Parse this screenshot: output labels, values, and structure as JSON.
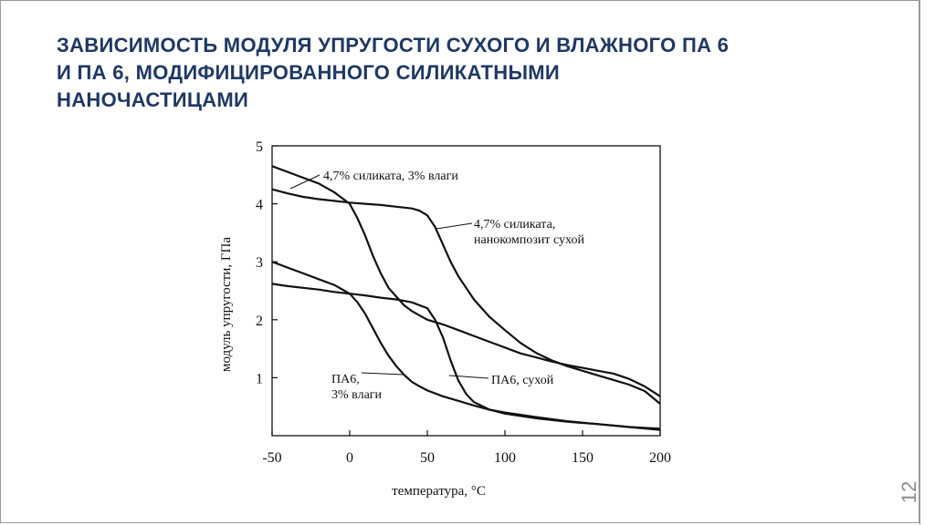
{
  "slide": {
    "title_lines": [
      "ЗАВИСИМОСТЬ МОДУЛЯ УПРУГОСТИ СУХОГО И ВЛАЖНОГО ПА 6",
      "И ПА 6, МОДИФИЦИРОВАННОГО СИЛИКАТНЫМИ",
      "НАНОЧАСТИЦАМИ"
    ],
    "slide_number": "12"
  },
  "chart_data": {
    "type": "line",
    "xlabel": "температура, °С",
    "ylabel": "модуль упругости, ГПа",
    "xlim": [
      -50,
      200
    ],
    "ylim": [
      0,
      5
    ],
    "xticks": [
      "-50",
      "0",
      "50",
      "100",
      "150",
      "200"
    ],
    "yticks": [
      "1",
      "2",
      "3",
      "4",
      "5"
    ],
    "grid": false,
    "legend": "annotations",
    "series": [
      {
        "name": "4,7% силиката, 3% влаги",
        "label_lines": [
          "4,7% силиката, 3% влаги"
        ],
        "x": [
          -50,
          -40,
          -30,
          -20,
          -10,
          0,
          5,
          10,
          15,
          20,
          25,
          30,
          35,
          40,
          50,
          60,
          70,
          80,
          90,
          100,
          110,
          120,
          130,
          140,
          150,
          160,
          170,
          180,
          190,
          200
        ],
        "y": [
          4.65,
          4.55,
          4.45,
          4.35,
          4.2,
          4.0,
          3.75,
          3.45,
          3.1,
          2.8,
          2.55,
          2.4,
          2.25,
          2.15,
          2.0,
          1.92,
          1.82,
          1.72,
          1.62,
          1.52,
          1.42,
          1.35,
          1.28,
          1.22,
          1.17,
          1.12,
          1.07,
          0.98,
          0.85,
          0.68
        ]
      },
      {
        "name": "4,7% силиката, нанокомпозит сухой",
        "label_lines": [
          "4,7% силиката,",
          "нанокомпозит сухой"
        ],
        "x": [
          -50,
          -40,
          -30,
          -20,
          -10,
          0,
          10,
          20,
          30,
          40,
          45,
          50,
          55,
          60,
          65,
          70,
          75,
          80,
          90,
          100,
          110,
          120,
          130,
          140,
          150,
          160,
          170,
          180,
          190,
          200
        ],
        "y": [
          4.25,
          4.18,
          4.12,
          4.08,
          4.05,
          4.02,
          4.0,
          3.98,
          3.95,
          3.92,
          3.88,
          3.8,
          3.6,
          3.3,
          3.0,
          2.75,
          2.55,
          2.35,
          2.05,
          1.82,
          1.6,
          1.43,
          1.3,
          1.2,
          1.12,
          1.04,
          0.96,
          0.88,
          0.77,
          0.55
        ]
      },
      {
        "name": "ПА6, 3% влаги",
        "label_lines": [
          "ПА6,",
          "3% влаги"
        ],
        "x": [
          -50,
          -40,
          -30,
          -20,
          -10,
          0,
          5,
          10,
          15,
          20,
          25,
          30,
          35,
          40,
          45,
          50,
          60,
          70,
          80,
          90,
          100,
          120,
          140,
          160,
          180,
          200
        ],
        "y": [
          3.0,
          2.9,
          2.8,
          2.7,
          2.6,
          2.45,
          2.3,
          2.1,
          1.85,
          1.6,
          1.38,
          1.2,
          1.05,
          0.93,
          0.85,
          0.78,
          0.68,
          0.6,
          0.52,
          0.45,
          0.4,
          0.32,
          0.25,
          0.2,
          0.15,
          0.1
        ]
      },
      {
        "name": "ПА6, сухой",
        "label_lines": [
          "ПА6, сухой"
        ],
        "x": [
          -50,
          -40,
          -30,
          -20,
          -10,
          0,
          10,
          20,
          30,
          40,
          50,
          55,
          60,
          65,
          70,
          75,
          80,
          90,
          100,
          120,
          140,
          160,
          180,
          200
        ],
        "y": [
          2.62,
          2.58,
          2.55,
          2.52,
          2.48,
          2.45,
          2.42,
          2.38,
          2.35,
          2.3,
          2.2,
          2.0,
          1.7,
          1.3,
          0.95,
          0.72,
          0.58,
          0.45,
          0.38,
          0.3,
          0.24,
          0.2,
          0.15,
          0.12
        ]
      }
    ]
  }
}
